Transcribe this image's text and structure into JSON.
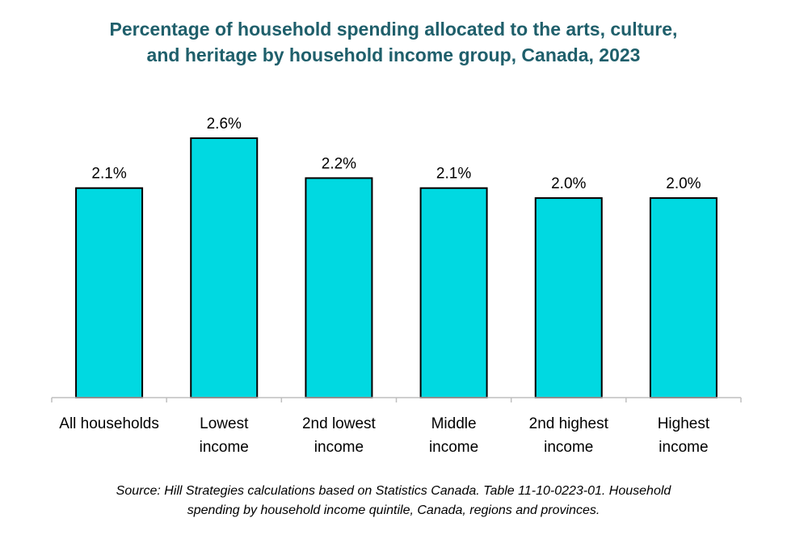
{
  "chart_data": {
    "type": "bar",
    "title_lines": [
      "Percentage of household spending allocated to the arts, culture,",
      "and heritage by household income group, Canada, 2023"
    ],
    "categories": [
      [
        "All households"
      ],
      [
        "Lowest",
        "income"
      ],
      [
        "2nd lowest",
        "income"
      ],
      [
        "Middle",
        "income"
      ],
      [
        "2nd highest",
        "income"
      ],
      [
        "Highest",
        "income"
      ]
    ],
    "values": [
      2.1,
      2.6,
      2.2,
      2.1,
      2.0,
      2.0
    ],
    "data_labels": [
      "2.1%",
      "2.6%",
      "2.2%",
      "2.1%",
      "2.0%",
      "2.0%"
    ],
    "ylim": [
      0,
      2.6
    ],
    "grid": false,
    "legend": "none",
    "bar_color": "#00d9e1",
    "bar_border_color": "#000000",
    "xlabel": "",
    "ylabel": ""
  },
  "source_lines": [
    "Source: Hill Strategies calculations based on Statistics Canada. Table 11-10-0223-01. Household",
    "spending by household income quintile, Canada, regions and provinces."
  ]
}
